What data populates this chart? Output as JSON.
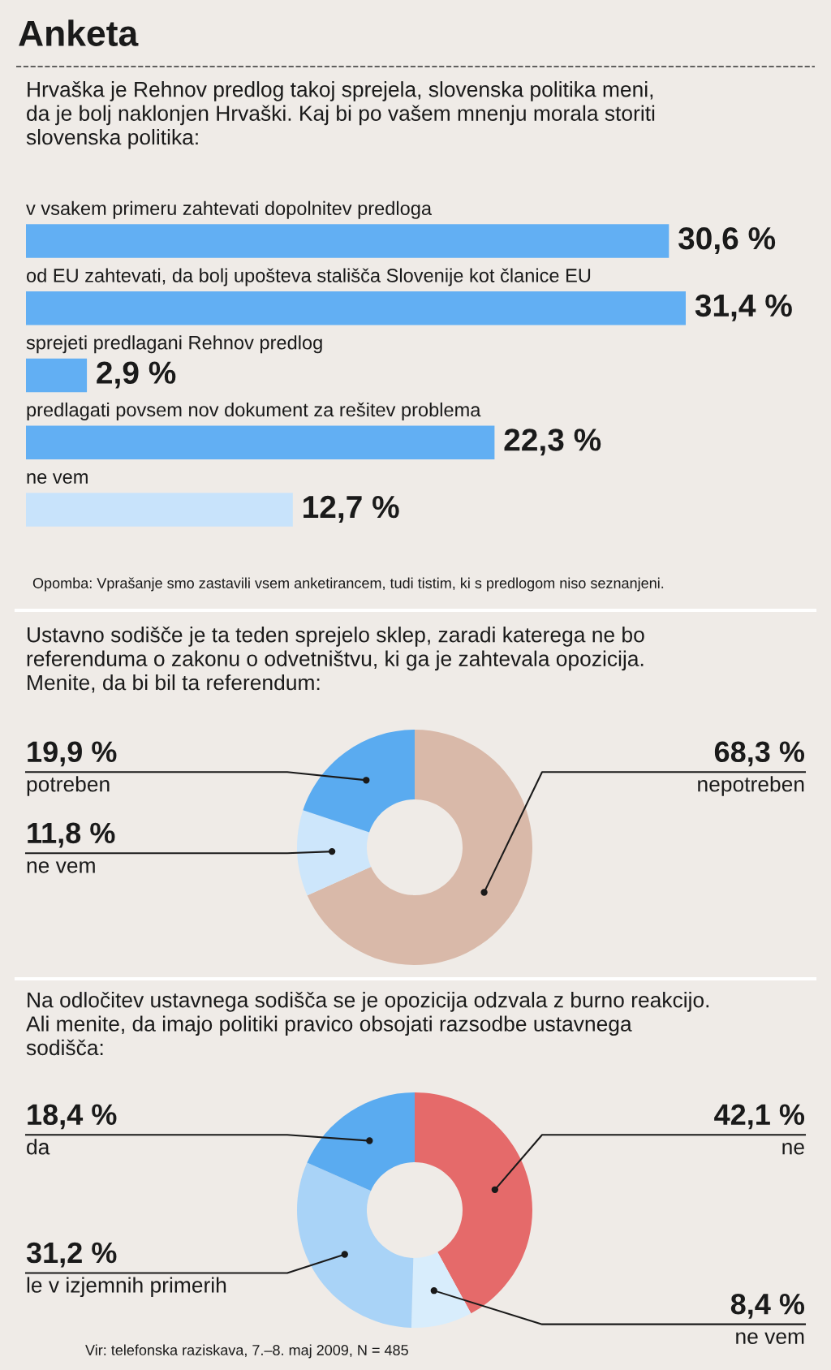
{
  "chart_data": [
    {
      "type": "bar",
      "orientation": "horizontal",
      "title": "Anketa",
      "subtitle": "Hrvaška je Rehnov predlog takoj sprejela, slovenska politika meni,\nda je bolj naklonjen Hrvaški. Kaj bi po vašem mnenju morala storiti\nslovenska politika:",
      "categories": [
        "v vsakem primeru zahtevati dopolnitev predloga",
        "od EU zahtevati, da bolj upošteva stališča Slovenije kot članice EU",
        "sprejeti predlagani Rehnov predlog",
        "predlagati povsem nov dokument za rešitev problema",
        "ne vem"
      ],
      "values": [
        30.6,
        31.4,
        2.9,
        22.3,
        12.7
      ],
      "colors": [
        "#62aff3",
        "#62aff3",
        "#62aff3",
        "#62aff3",
        "#c8e3fb"
      ],
      "value_labels": [
        "30,6 %",
        "31,4 %",
        "2,9 %",
        "22,3 %",
        "12,7 %"
      ],
      "annotations": [
        "Opomba: Vprašanje smo zastavili vsem anketirancem, tudi tistim, ki s predlogom niso seznanjeni."
      ]
    },
    {
      "type": "donut",
      "subtitle": "Ustavno sodišče je ta teden sprejelo sklep, zaradi katerega ne bo\nreferenduma o zakonu o odvetništvu, ki ga je zahtevala opozicija.\nMenite, da bi bil ta referendum:",
      "categories": [
        "nepotreben",
        "ne vem",
        "potreben"
      ],
      "values": [
        68.3,
        11.8,
        19.9
      ],
      "colors": [
        "#d9b9a9",
        "#cde6fb",
        "#5aabf0"
      ],
      "value_labels": [
        "68,3 %",
        "11,8 %",
        "19,9 %"
      ]
    },
    {
      "type": "donut",
      "subtitle": "Na odločitev ustavnega sodišča se je opozicija odzvala z burno reakcijo.\nAli menite, da imajo politiki pravico obsojati razsodbe ustavnega\nsodišča:",
      "categories": [
        "ne",
        "ne vem",
        "le v izjemnih primerih",
        "da"
      ],
      "values": [
        42.1,
        8.4,
        31.2,
        18.4
      ],
      "colors": [
        "#e56a6a",
        "#d8edfc",
        "#a9d3f7",
        "#5aabf0"
      ],
      "value_labels": [
        "42,1 %",
        "8,4 %",
        "31,2 %",
        "18,4 %"
      ],
      "annotations": [
        "Vir: telefonska raziskava, 7.–8. maj 2009, N = 485"
      ]
    }
  ]
}
